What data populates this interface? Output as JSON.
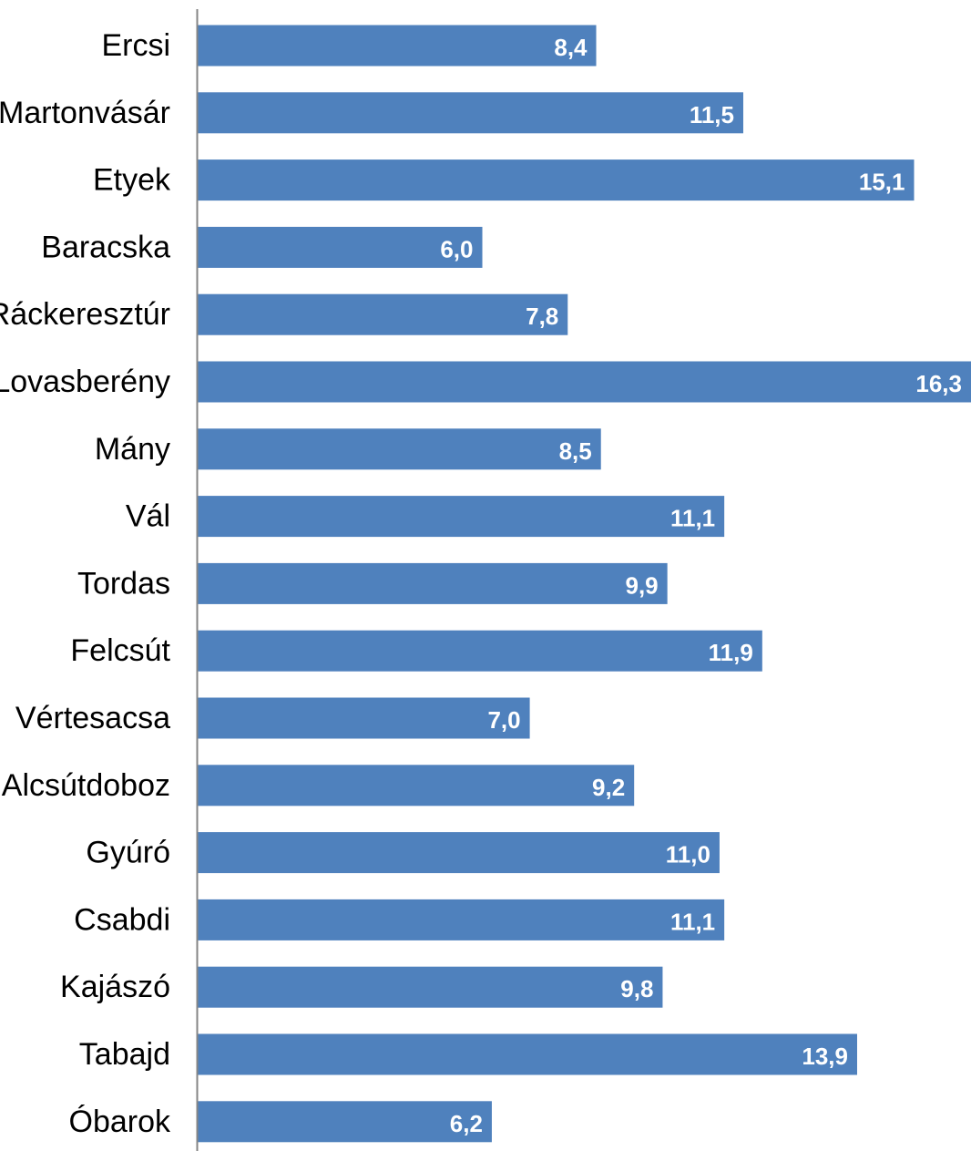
{
  "chart_data": {
    "type": "bar",
    "orientation": "horizontal",
    "categories": [
      "Ercsi",
      "Martonvásár",
      "Etyek",
      "Baracska",
      "Ráckeresztúr",
      "Lovasberény",
      "Mány",
      "Vál",
      "Tordas",
      "Felcsút",
      "Vértesacsa",
      "Alcsútdoboz",
      "Gyúró",
      "Csabdi",
      "Kajászó",
      "Tabajd",
      "Óbarok"
    ],
    "values": [
      8.4,
      11.5,
      15.1,
      6.0,
      7.8,
      16.3,
      8.5,
      11.1,
      9.9,
      11.9,
      7.0,
      9.2,
      11.0,
      11.1,
      9.8,
      13.9,
      6.2
    ],
    "value_labels": [
      "8,4",
      "11,5",
      "15,1",
      "6,0",
      "7,8",
      "16,3",
      "8,5",
      "11,1",
      "9,9",
      "11,9",
      "7,0",
      "9,2",
      "11,0",
      "11,1",
      "9,8",
      "13,9",
      "6,2"
    ],
    "title": "",
    "xlabel": "",
    "ylabel": "",
    "xlim": [
      0,
      16.3
    ],
    "grid": false,
    "legend": "none",
    "colors": {
      "bar": "#4f81bd",
      "axis": "#868686",
      "label_text": "#ffffff"
    }
  }
}
